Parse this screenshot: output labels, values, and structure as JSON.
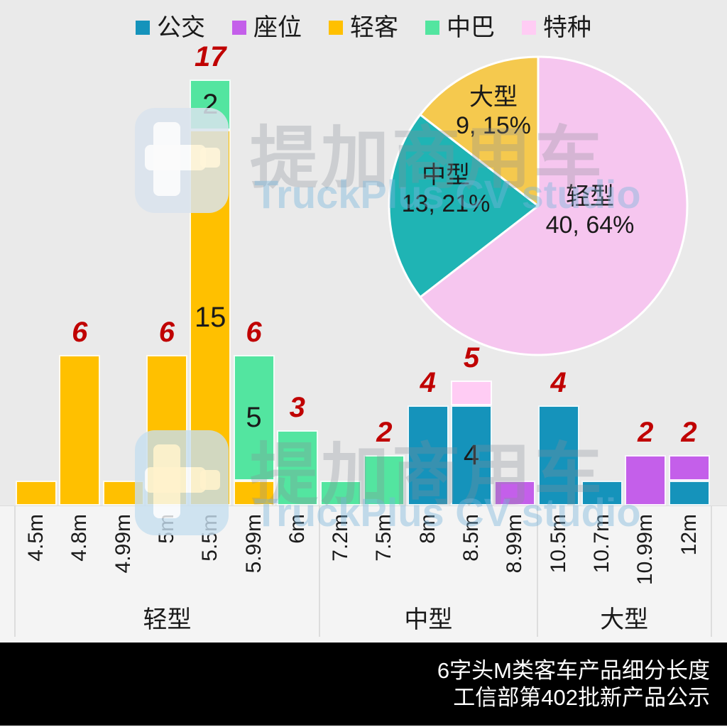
{
  "legend": {
    "items": [
      {
        "label": "公交",
        "color": "#1593BB"
      },
      {
        "label": "座位",
        "color": "#C45FEA"
      },
      {
        "label": "轻客",
        "color": "#FFC000"
      },
      {
        "label": "中巴",
        "color": "#53E5A0"
      },
      {
        "label": "特种",
        "color": "#FFCCF4"
      }
    ]
  },
  "watermark": {
    "logo": "truckplus-logo",
    "cn": "提加商用车",
    "en": "TruckPlus CV studio"
  },
  "caption": {
    "line1": "6字头M类客车产品细分长度",
    "line2": "工信部第402批新产品公示",
    "background": "#000000",
    "text_color": "#FFFFFF"
  },
  "colors": {
    "plot_background": "#EAEAEA",
    "axis_strip_background": "#F4F4F4",
    "data_label_red": "#C00000",
    "pie_light": "#F6C6EF",
    "pie_medium": "#1FB4B4",
    "pie_large": "#F5C94E"
  },
  "chart_data": [
    {
      "type": "bar",
      "stacked": true,
      "grid": false,
      "ylim": [
        0,
        17
      ],
      "x_categories": [
        "4.5m",
        "4.8m",
        "4.99m",
        "5m",
        "5.5m",
        "5.99m",
        "6m",
        "7.2m",
        "7.5m",
        "8m",
        "8.5m",
        "8.99m",
        "10.5m",
        "10.7m",
        "10.99m",
        "12m"
      ],
      "groups": [
        {
          "label": "轻型",
          "from": 0,
          "to": 6
        },
        {
          "label": "中型",
          "from": 7,
          "to": 11
        },
        {
          "label": "大型",
          "from": 12,
          "to": 15
        }
      ],
      "bars": [
        {
          "x": "4.5m",
          "segments": [
            {
              "series": "轻客",
              "value": 1,
              "show_value": false
            }
          ],
          "total": 1,
          "total_label": ""
        },
        {
          "x": "4.8m",
          "segments": [
            {
              "series": "轻客",
              "value": 6,
              "show_value": false
            }
          ],
          "total": 6,
          "total_label": "6"
        },
        {
          "x": "4.99m",
          "segments": [
            {
              "series": "轻客",
              "value": 1,
              "show_value": false
            }
          ],
          "total": 1,
          "total_label": ""
        },
        {
          "x": "5m",
          "segments": [
            {
              "series": "轻客",
              "value": 6,
              "show_value": false
            }
          ],
          "total": 6,
          "total_label": "6"
        },
        {
          "x": "5.5m",
          "segments": [
            {
              "series": "轻客",
              "value": 15,
              "show_value": true
            },
            {
              "series": "中巴",
              "value": 2,
              "show_value": true
            }
          ],
          "total": 17,
          "total_label": "17"
        },
        {
          "x": "5.99m",
          "segments": [
            {
              "series": "轻客",
              "value": 1,
              "show_value": false
            },
            {
              "series": "中巴",
              "value": 5,
              "show_value": true
            }
          ],
          "total": 6,
          "total_label": "6"
        },
        {
          "x": "6m",
          "segments": [
            {
              "series": "中巴",
              "value": 3,
              "show_value": false
            }
          ],
          "total": 3,
          "total_label": "3"
        },
        {
          "x": "7.2m",
          "segments": [
            {
              "series": "中巴",
              "value": 1,
              "show_value": false
            }
          ],
          "total": 1,
          "total_label": ""
        },
        {
          "x": "7.5m",
          "segments": [
            {
              "series": "中巴",
              "value": 2,
              "show_value": false
            }
          ],
          "total": 2,
          "total_label": "2"
        },
        {
          "x": "8m",
          "segments": [
            {
              "series": "公交",
              "value": 4,
              "show_value": false
            }
          ],
          "total": 4,
          "total_label": "4"
        },
        {
          "x": "8.5m",
          "segments": [
            {
              "series": "公交",
              "value": 4,
              "show_value": true
            },
            {
              "series": "特种",
              "value": 1,
              "show_value": false
            }
          ],
          "total": 5,
          "total_label": "5"
        },
        {
          "x": "8.99m",
          "segments": [
            {
              "series": "座位",
              "value": 1,
              "show_value": false
            }
          ],
          "total": 1,
          "total_label": ""
        },
        {
          "x": "10.5m",
          "segments": [
            {
              "series": "公交",
              "value": 4,
              "show_value": false
            }
          ],
          "total": 4,
          "total_label": "4"
        },
        {
          "x": "10.7m",
          "segments": [
            {
              "series": "公交",
              "value": 1,
              "show_value": false
            }
          ],
          "total": 1,
          "total_label": ""
        },
        {
          "x": "10.99m",
          "segments": [
            {
              "series": "座位",
              "value": 2,
              "show_value": false
            }
          ],
          "total": 2,
          "total_label": "2"
        },
        {
          "x": "12m",
          "segments": [
            {
              "series": "公交",
              "value": 1,
              "show_value": false
            },
            {
              "series": "座位",
              "value": 1,
              "show_value": false
            }
          ],
          "total": 2,
          "total_label": "2"
        }
      ]
    },
    {
      "type": "pie",
      "total": 62,
      "start": "12-oclock",
      "direction": "clockwise",
      "slices": [
        {
          "label": "轻型",
          "value": 40,
          "pct": "64%",
          "color": "#F6C6EF"
        },
        {
          "label": "中型",
          "value": 13,
          "pct": "21%",
          "color": "#1FB4B4"
        },
        {
          "label": "大型",
          "value": 9,
          "pct": "15%",
          "color": "#F5C94E"
        }
      ]
    }
  ]
}
